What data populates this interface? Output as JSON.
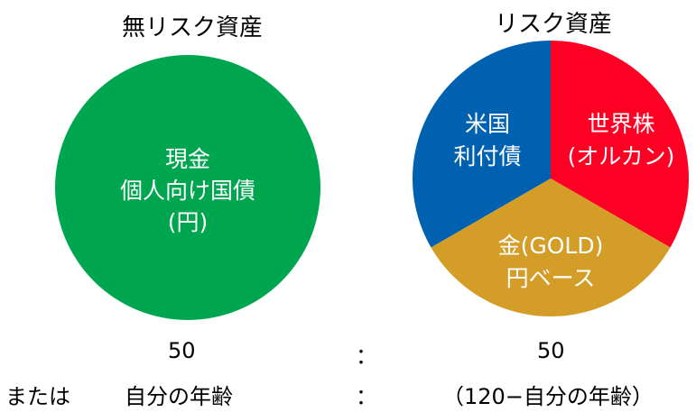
{
  "left": {
    "title": "無リスク資産",
    "color": "#00A550",
    "labels": [
      "現金",
      "個人向け国債",
      "(円)"
    ]
  },
  "right": {
    "title": "リスク資産",
    "slices": [
      {
        "lines": [
          "米国",
          "利付債"
        ],
        "color": "#0061B0"
      },
      {
        "lines": [
          "世界株",
          "(オルカン)"
        ],
        "color": "#FF0025"
      },
      {
        "lines": [
          "金(GOLD)",
          "円ベース"
        ],
        "color": "#D39D27"
      }
    ]
  },
  "ratio_row": {
    "left_value": "50",
    "separator": "：",
    "right_value": "50"
  },
  "age_row": {
    "prefix": "または",
    "left_value": "自分の年齢",
    "separator": "：",
    "right_value": "（120−自分の年齢）"
  }
}
